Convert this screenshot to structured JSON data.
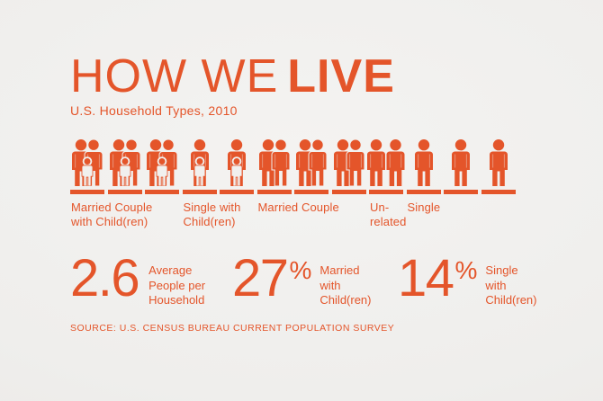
{
  "colors": {
    "accent": "#E4552A",
    "background": "#F1F0EE"
  },
  "header": {
    "title_light": "HOW WE",
    "title_bold": "LIVE",
    "subtitle": "U.S. Household Types, 2010"
  },
  "chart_data": {
    "type": "bar",
    "variant": "pictogram",
    "title": "HOW WE LIVE",
    "subtitle": "U.S. Household Types, 2010",
    "unit": "household icons",
    "categories": [
      "Married Couple with Child(ren)",
      "Single with Child(ren)",
      "Married Couple",
      "Un-related",
      "Single"
    ],
    "values": [
      3,
      2,
      3,
      1,
      3
    ],
    "groups": [
      {
        "label": "Married Couple with Child(ren)",
        "label_lines": "Married Couple\nwith Child(ren)",
        "icon": "couple-with-child",
        "count": 3
      },
      {
        "label": "Single with Child(ren)",
        "label_lines": "Single with\nChild(ren)",
        "icon": "single-with-child",
        "count": 2
      },
      {
        "label": "Married Couple",
        "label_lines": "Married Couple",
        "icon": "couple",
        "count": 3
      },
      {
        "label": "Un-related",
        "label_lines": "Un-\nrelated",
        "icon": "unrelated-pair",
        "count": 1
      },
      {
        "label": "Single",
        "label_lines": "Single",
        "icon": "single",
        "count": 3
      }
    ],
    "annotations": [
      {
        "value": "2.6",
        "suffix": "",
        "label": "Average People per Household"
      },
      {
        "value": "27",
        "suffix": "%",
        "label": "Married with Child(ren)"
      },
      {
        "value": "14",
        "suffix": "%",
        "label": "Single with Child(ren)"
      }
    ]
  },
  "stats": [
    {
      "value": "2.6",
      "suffix": "",
      "label_lines": "Average\nPeople per\nHousehold"
    },
    {
      "value": "27",
      "suffix": "%",
      "label_lines": "Married\nwith\nChild(ren)"
    },
    {
      "value": "14",
      "suffix": "%",
      "label_lines": "Single\nwith\nChild(ren)"
    }
  ],
  "source": "SOURCE: U.S. CENSUS BUREAU CURRENT POPULATION SURVEY"
}
